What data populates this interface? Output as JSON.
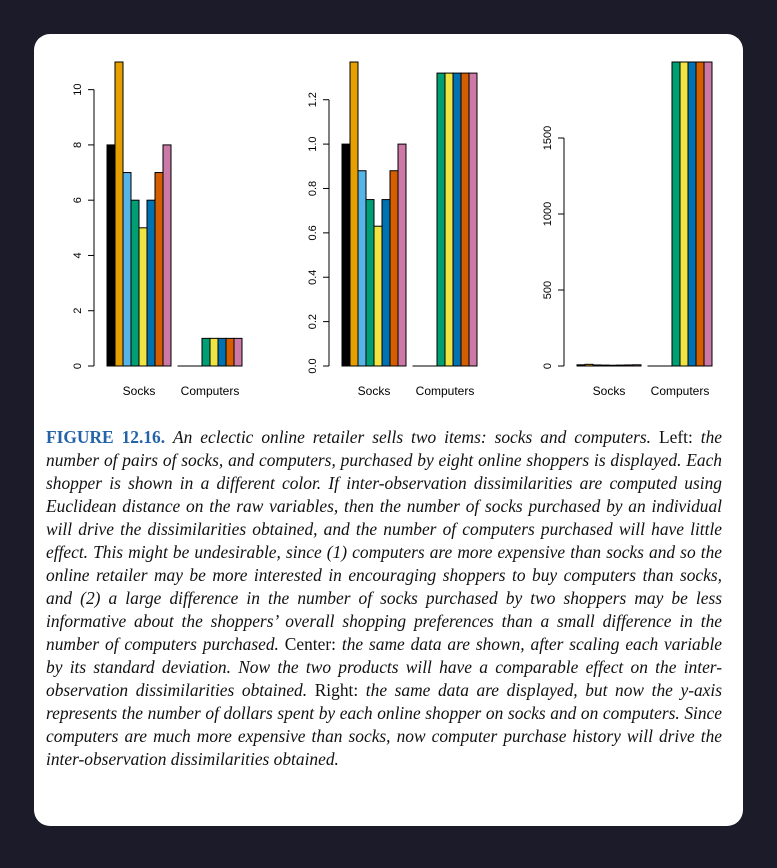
{
  "colors": {
    "background": "#1b1b29",
    "card": "#ffffff",
    "figure_label": "#2463a8",
    "shoppers": [
      "#000000",
      "#e69f00",
      "#56b4e9",
      "#009e73",
      "#f0e442",
      "#0072b2",
      "#d55e00",
      "#cc79a7"
    ]
  },
  "chart_data": [
    {
      "type": "bar",
      "categories": [
        "Socks",
        "Computers"
      ],
      "series_count": 8,
      "values": [
        [
          8,
          11,
          7,
          6,
          5,
          6,
          7,
          8
        ],
        [
          0,
          0,
          0,
          1,
          1,
          1,
          1,
          1
        ]
      ],
      "ylim": [
        0,
        11
      ],
      "yticks": [
        "0",
        "2",
        "4",
        "6",
        "8",
        "10"
      ],
      "ytick_values": [
        0,
        2,
        4,
        6,
        8,
        10
      ],
      "xlabel": "",
      "ylabel": "",
      "title": ""
    },
    {
      "type": "bar",
      "categories": [
        "Socks",
        "Computers"
      ],
      "series_count": 8,
      "values": [
        [
          1.0,
          1.37,
          0.88,
          0.75,
          0.63,
          0.75,
          0.88,
          1.0
        ],
        [
          0,
          0,
          0,
          1.32,
          1.32,
          1.32,
          1.32,
          1.32
        ]
      ],
      "ylim": [
        0,
        1.37
      ],
      "yticks": [
        "0.0",
        "0.2",
        "0.4",
        "0.6",
        "0.8",
        "1.0",
        "1.2"
      ],
      "ytick_values": [
        0,
        0.2,
        0.4,
        0.6,
        0.8,
        1.0,
        1.2
      ],
      "xlabel": "",
      "ylabel": "",
      "title": ""
    },
    {
      "type": "bar",
      "categories": [
        "Socks",
        "Computers"
      ],
      "series_count": 8,
      "values": [
        [
          8,
          11,
          7,
          6,
          5,
          6,
          7,
          8
        ],
        [
          0,
          0,
          0,
          2000,
          2000,
          2000,
          2000,
          2000
        ]
      ],
      "ylim": [
        0,
        2000
      ],
      "yticks": [
        "0",
        "500",
        "1000",
        "1500"
      ],
      "ytick_values": [
        0,
        500,
        1000,
        1500
      ],
      "xlabel": "",
      "ylabel": "",
      "title": ""
    }
  ],
  "caption": {
    "label": "FIGURE 12.16.",
    "intro": "An eclectic online retailer sells two items: socks and computers.",
    "left_word": "Left:",
    "left_text": "the number of pairs of socks, and computers, purchased by eight online shoppers is displayed. Each shopper is shown in a different color. If inter-observation dissimilarities are computed using Euclidean distance on the raw variables, then the number of socks purchased by an individual will drive the dissimilarities obtained, and the number of computers purchased will have little effect. This might be undesirable, since (1) computers are more expensive than socks and so the online retailer may be more interested in encouraging shoppers to buy computers than socks, and (2) a large difference in the number of socks purchased by two shoppers may be less informative about the shoppers’ overall shopping preferences than a small difference in the number of computers purchased.",
    "center_word": "Center:",
    "center_text": "the same data are shown, after scaling each variable by its standard deviation. Now the two products will have a comparable effect on the inter-observation dissimilarities obtained.",
    "right_word": "Right:",
    "right_text": "the same data are displayed, but now the y-axis represents the number of dollars spent by each online shopper on socks and on computers. Since computers are much more expensive than socks, now computer purchase history will drive the inter-observation dissimilarities obtained."
  }
}
